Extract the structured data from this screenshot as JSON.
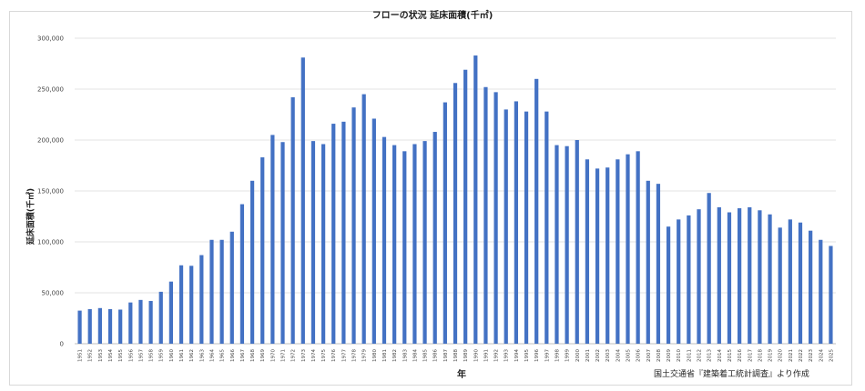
{
  "chart_data": {
    "type": "bar",
    "title": "フローの状況 延床面積(千㎡)",
    "xlabel": "年",
    "ylabel": "延床面積(千㎡)",
    "source_note": "国土交通省『建築着工統計調査』より作成",
    "ylim": [
      0,
      300000
    ],
    "yticks": [
      "0",
      "50,000",
      "100,000",
      "150,000",
      "200,000",
      "250,000",
      "300,000"
    ],
    "grid": true,
    "bar_color": "#4472c4",
    "categories": [
      "1951",
      "1952",
      "1953",
      "1954",
      "1955",
      "1956",
      "1957",
      "1958",
      "1959",
      "1960",
      "1961",
      "1962",
      "1963",
      "1964",
      "1965",
      "1966",
      "1967",
      "1968",
      "1969",
      "1970",
      "1971",
      "1972",
      "1973",
      "1974",
      "1975",
      "1976",
      "1977",
      "1978",
      "1979",
      "1980",
      "1981",
      "1982",
      "1983",
      "1984",
      "1985",
      "1986",
      "1987",
      "1988",
      "1989",
      "1990",
      "1991",
      "1992",
      "1993",
      "1994",
      "1995",
      "1996",
      "1997",
      "1998",
      "1999",
      "2000",
      "2001",
      "2002",
      "2003",
      "2004",
      "2005",
      "2006",
      "2007",
      "2008",
      "2009",
      "2010",
      "2011",
      "2012",
      "2013",
      "2014",
      "2015",
      "2016",
      "2017",
      "2018",
      "2019",
      "2020",
      "2021",
      "2022",
      "2023",
      "2024",
      "2025"
    ],
    "values": [
      32500,
      34000,
      35000,
      34000,
      33500,
      40500,
      43000,
      42000,
      51000,
      61000,
      77000,
      76500,
      87000,
      102000,
      102000,
      110000,
      137000,
      160000,
      183000,
      205000,
      198000,
      242000,
      281000,
      199000,
      196000,
      216000,
      218000,
      232000,
      245000,
      221000,
      203000,
      195000,
      189000,
      196000,
      199000,
      208000,
      237000,
      256000,
      269000,
      283000,
      252000,
      247000,
      230000,
      238000,
      228000,
      260000,
      228000,
      195000,
      194000,
      200000,
      181000,
      172000,
      173000,
      181000,
      186000,
      189000,
      160000,
      157000,
      115000,
      122000,
      126000,
      132000,
      148000,
      134000,
      129000,
      133000,
      134000,
      131000,
      127000,
      114000,
      122000,
      119000,
      111000,
      102000,
      96000
    ]
  }
}
